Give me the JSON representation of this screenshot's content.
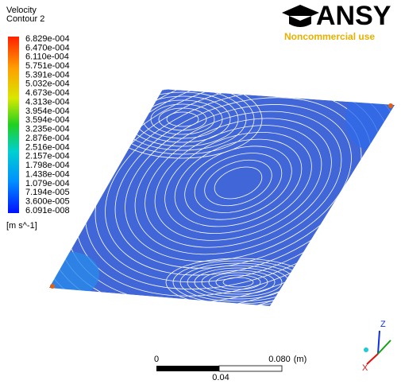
{
  "legend": {
    "title": "Velocity",
    "subtitle": "Contour 2",
    "labels": [
      "6.829e-004",
      "6.470e-004",
      "6.110e-004",
      "5.751e-004",
      "5.391e-004",
      "5.032e-004",
      "4.673e-004",
      "4.313e-004",
      "3.954e-004",
      "3.594e-004",
      "3.235e-004",
      "2.876e-004",
      "2.516e-004",
      "2.157e-004",
      "1.798e-004",
      "1.438e-004",
      "1.079e-004",
      "7.194e-005",
      "3.600e-005",
      "6.091e-008"
    ],
    "unit": "[m s^-1]"
  },
  "logo": {
    "brand": "ANSY",
    "note": "Noncommercial use"
  },
  "scale_bar": {
    "start": "0",
    "end": "0.080",
    "unit": "(m)",
    "mid": "0.04"
  },
  "triad": {
    "z": "Z",
    "x": "X"
  }
}
